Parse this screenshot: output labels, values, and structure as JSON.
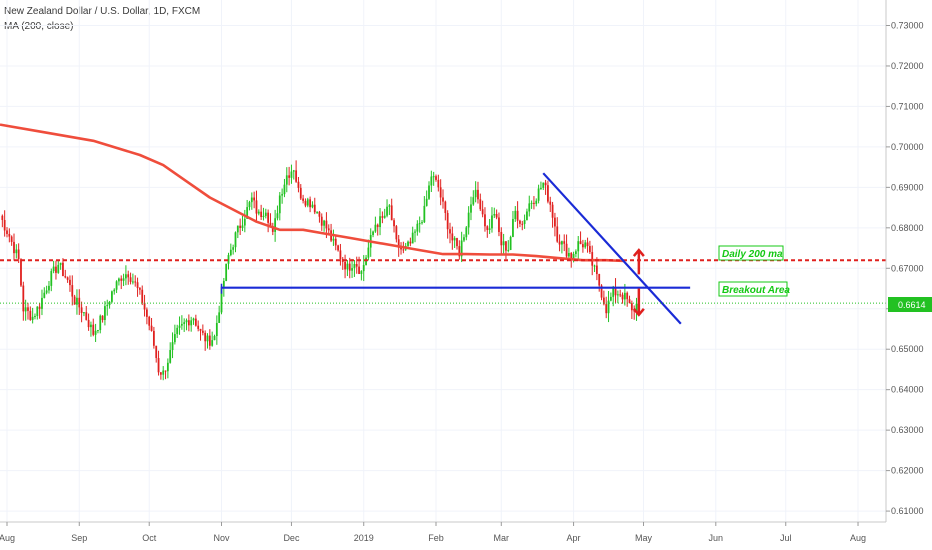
{
  "header": {
    "title": "New Zealand Dollar / U.S. Dollar, 1D, FXCM",
    "indicator": "MA (200, close)"
  },
  "colors": {
    "up": "#22c122",
    "down": "#e0201e",
    "ma": "#ef4d3c",
    "trendline": "#1a2bd6",
    "resistance": "#e0201e",
    "support": "#1a2bd6",
    "price_line": "#22c122",
    "annotation": "#14c814"
  },
  "annotations": {
    "ma_label": "Daily 200 ma",
    "breakout_label": "Breakout Area",
    "price_tag": "0.6614"
  },
  "chart_data": {
    "type": "candlestick",
    "title": "New Zealand Dollar / U.S. Dollar, 1D, FXCM",
    "ylim": [
      0.6073,
      0.7363
    ],
    "x_range_days": [
      0,
      380
    ],
    "y_ticks": [
      "0.61000",
      "0.62000",
      "0.63000",
      "0.64000",
      "0.65000",
      "0.66000",
      "0.67000",
      "0.68000",
      "0.69000",
      "0.70000",
      "0.71000",
      "0.72000",
      "0.73000"
    ],
    "x_ticks": [
      {
        "label": "Aug",
        "day": 3
      },
      {
        "label": "Sep",
        "day": 34
      },
      {
        "label": "Oct",
        "day": 64
      },
      {
        "label": "Nov",
        "day": 95
      },
      {
        "label": "Dec",
        "day": 125
      },
      {
        "label": "2019",
        "day": 156
      },
      {
        "label": "Feb",
        "day": 187
      },
      {
        "label": "Mar",
        "day": 215
      },
      {
        "label": "Apr",
        "day": 246
      },
      {
        "label": "May",
        "day": 276
      },
      {
        "label": "Jun",
        "day": 307
      },
      {
        "label": "Jul",
        "day": 337
      },
      {
        "label": "Aug",
        "day": 368
      }
    ],
    "anchors": [
      [
        0,
        0.683
      ],
      [
        4,
        0.678
      ],
      [
        8,
        0.672
      ],
      [
        10,
        0.66
      ],
      [
        14,
        0.658
      ],
      [
        17,
        0.661
      ],
      [
        21,
        0.667
      ],
      [
        25,
        0.671
      ],
      [
        29,
        0.667
      ],
      [
        32,
        0.662
      ],
      [
        36,
        0.659
      ],
      [
        40,
        0.654
      ],
      [
        44,
        0.658
      ],
      [
        48,
        0.664
      ],
      [
        52,
        0.668
      ],
      [
        55,
        0.669
      ],
      [
        58,
        0.666
      ],
      [
        61,
        0.662
      ],
      [
        64,
        0.656
      ],
      [
        66,
        0.651
      ],
      [
        68,
        0.645
      ],
      [
        70,
        0.644
      ],
      [
        73,
        0.649
      ],
      [
        76,
        0.654
      ],
      [
        80,
        0.657
      ],
      [
        83,
        0.658
      ],
      [
        86,
        0.654
      ],
      [
        89,
        0.652
      ],
      [
        92,
        0.653
      ],
      [
        95,
        0.664
      ],
      [
        98,
        0.673
      ],
      [
        101,
        0.678
      ],
      [
        104,
        0.682
      ],
      [
        108,
        0.687
      ],
      [
        111,
        0.683
      ],
      [
        114,
        0.685
      ],
      [
        117,
        0.678
      ],
      [
        120,
        0.688
      ],
      [
        123,
        0.693
      ],
      [
        126,
        0.695
      ],
      [
        128,
        0.689
      ],
      [
        131,
        0.687
      ],
      [
        134,
        0.686
      ],
      [
        137,
        0.683
      ],
      [
        140,
        0.68
      ],
      [
        143,
        0.676
      ],
      [
        146,
        0.673
      ],
      [
        149,
        0.67
      ],
      [
        152,
        0.672
      ],
      [
        155,
        0.669
      ],
      [
        158,
        0.675
      ],
      [
        161,
        0.681
      ],
      [
        164,
        0.682
      ],
      [
        167,
        0.685
      ],
      [
        170,
        0.676
      ],
      [
        173,
        0.674
      ],
      [
        176,
        0.676
      ],
      [
        179,
        0.68
      ],
      [
        182,
        0.684
      ],
      [
        185,
        0.693
      ],
      [
        188,
        0.69
      ],
      [
        191,
        0.683
      ],
      [
        194,
        0.677
      ],
      [
        197,
        0.674
      ],
      [
        200,
        0.681
      ],
      [
        203,
        0.689
      ],
      [
        206,
        0.686
      ],
      [
        209,
        0.679
      ],
      [
        212,
        0.684
      ],
      [
        215,
        0.676
      ],
      [
        218,
        0.675
      ],
      [
        221,
        0.684
      ],
      [
        224,
        0.681
      ],
      [
        227,
        0.686
      ],
      [
        230,
        0.688
      ],
      [
        233,
        0.691
      ],
      [
        236,
        0.686
      ],
      [
        239,
        0.678
      ],
      [
        242,
        0.675
      ],
      [
        245,
        0.673
      ],
      [
        248,
        0.676
      ],
      [
        251,
        0.676
      ],
      [
        254,
        0.671
      ],
      [
        257,
        0.666
      ],
      [
        260,
        0.66
      ],
      [
        263,
        0.664
      ],
      [
        266,
        0.664
      ],
      [
        269,
        0.662
      ],
      [
        271,
        0.659
      ],
      [
        273,
        0.661
      ]
    ],
    "ma_200": [
      [
        0,
        0.7055
      ],
      [
        20,
        0.7035
      ],
      [
        40,
        0.7015
      ],
      [
        60,
        0.698
      ],
      [
        70,
        0.6955
      ],
      [
        80,
        0.6915
      ],
      [
        90,
        0.6875
      ],
      [
        100,
        0.6845
      ],
      [
        110,
        0.6815
      ],
      [
        120,
        0.6795
      ],
      [
        130,
        0.6795
      ],
      [
        140,
        0.6785
      ],
      [
        150,
        0.6775
      ],
      [
        160,
        0.6765
      ],
      [
        170,
        0.6755
      ],
      [
        180,
        0.6745
      ],
      [
        190,
        0.6735
      ],
      [
        200,
        0.6735
      ],
      [
        210,
        0.6734
      ],
      [
        220,
        0.6734
      ],
      [
        230,
        0.673
      ],
      [
        240,
        0.6725
      ],
      [
        250,
        0.672
      ],
      [
        260,
        0.672
      ],
      [
        268,
        0.6718
      ]
    ],
    "lines": [
      {
        "name": "resistance",
        "y": 0.672
      },
      {
        "name": "support",
        "from_day": 95,
        "to_day": 296,
        "y": 0.6652
      },
      {
        "name": "trendline",
        "points": [
          [
            233,
            0.6935
          ],
          [
            292,
            0.6563
          ]
        ]
      },
      {
        "name": "current_price",
        "y": 0.6614
      }
    ],
    "arrows": [
      {
        "dir": "up",
        "day": 274,
        "from": 0.6685,
        "to": 0.6745
      },
      {
        "dir": "down",
        "day": 274,
        "from": 0.665,
        "to": 0.6585
      }
    ]
  }
}
